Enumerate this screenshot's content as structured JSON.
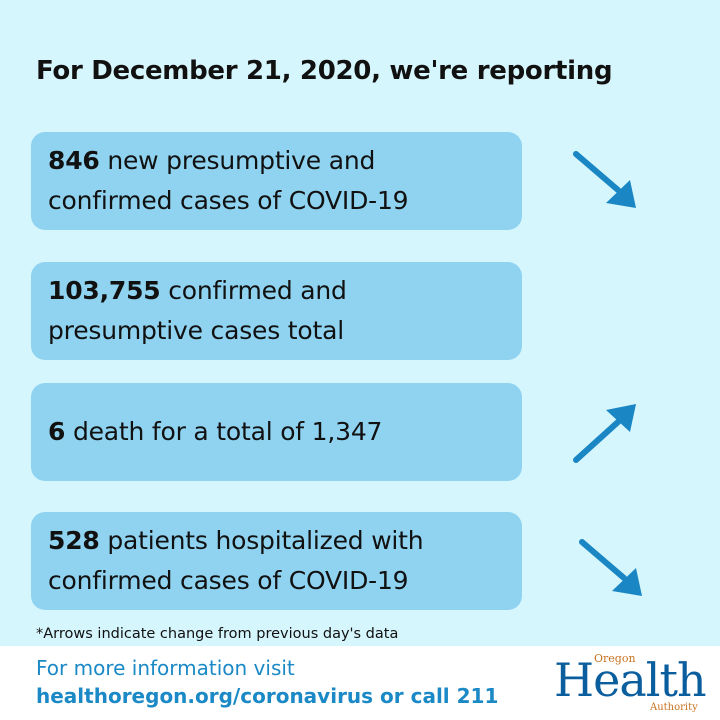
{
  "headline": "For December 21, 2020, we're reporting",
  "stats": [
    {
      "value": "846",
      "line1": " new presumptive and",
      "line2": "confirmed cases of COVID-19",
      "trend": "down"
    },
    {
      "value": "103,755",
      "line1": " confirmed and",
      "line2": "presumptive cases total",
      "trend": "none"
    },
    {
      "value": "6",
      "line1": " death for a total of 1,347",
      "line2": "",
      "trend": "up"
    },
    {
      "value": "528",
      "line1": " patients hospitalized with",
      "line2": "confirmed cases of COVID-19",
      "trend": "down"
    }
  ],
  "footnote": "*Arrows indicate change from previous day's data",
  "footer": {
    "more_info": "For more information visit",
    "link_text": "healthoregon.org/coronavirus or call 211"
  },
  "logo": {
    "top": "Oregon",
    "main": "Health",
    "bottom": "Authority"
  },
  "colors": {
    "background": "#d6f6fd",
    "card": "#8fd3f0",
    "arrow": "#1a86c4",
    "footer_text": "#1a89c6",
    "logo_main": "#0a5e9e",
    "logo_accent": "#c9721f"
  },
  "icons": [
    "arrow-down-right-icon",
    "arrow-up-right-icon"
  ]
}
